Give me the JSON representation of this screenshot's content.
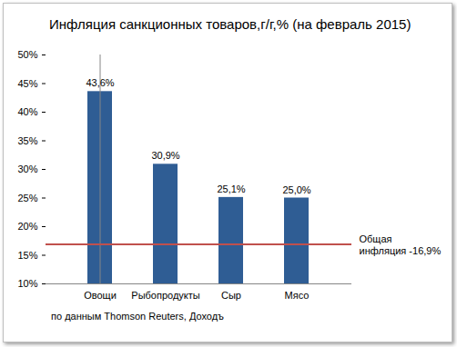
{
  "chart_data": {
    "type": "bar",
    "title": "Инфляция санкционных товаров,г/г,% (на февраль 2015)",
    "source": "по данным Thomson Reuters, Доходъ",
    "categories": [
      "Овощи",
      "Рыбопродукты",
      "Сыр",
      "Мясо"
    ],
    "values": [
      43.6,
      30.9,
      25.1,
      25.0
    ],
    "value_labels": [
      "43,6%",
      "30,9%",
      "25,1%",
      "25,0%"
    ],
    "color": "#2f5d94",
    "ylim": [
      10,
      50
    ],
    "yticks": [
      {
        "value": 10,
        "label": "10%"
      },
      {
        "value": 15,
        "label": "15%"
      },
      {
        "value": 20,
        "label": "20%"
      },
      {
        "value": 25,
        "label": "25%"
      },
      {
        "value": 30,
        "label": "30%"
      },
      {
        "value": 35,
        "label": "35%"
      },
      {
        "value": 40,
        "label": "40%"
      },
      {
        "value": 45,
        "label": "45%"
      },
      {
        "value": 50,
        "label": "50%"
      }
    ],
    "grid": false,
    "data_labels": true,
    "reference_lines": [
      {
        "value": 16.9,
        "label": "Общая\nинфляция -16,9%",
        "color": "#c0504d"
      }
    ]
  }
}
